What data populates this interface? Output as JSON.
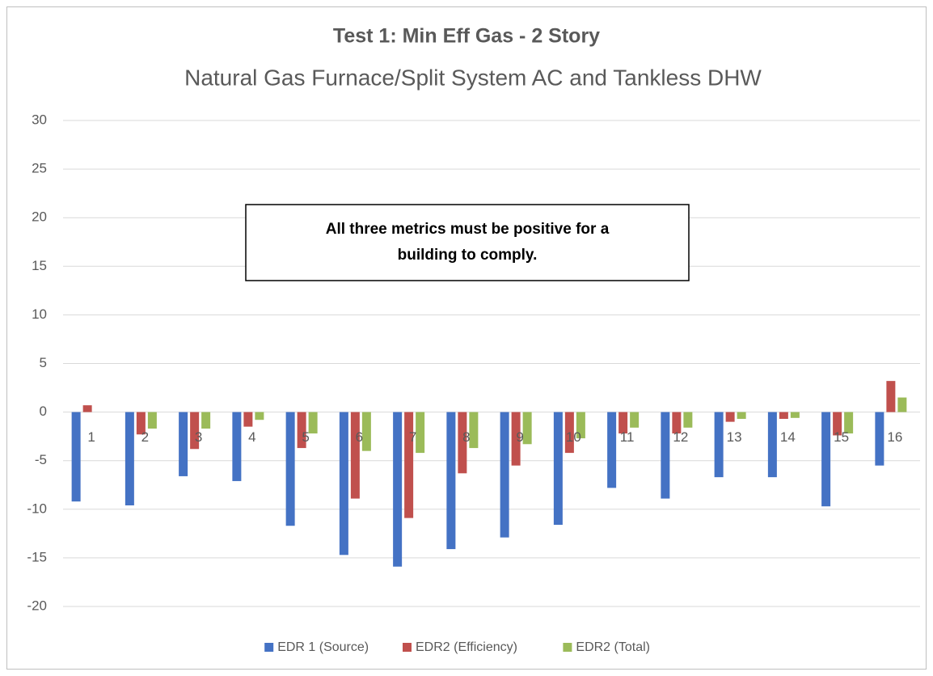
{
  "chart_data": {
    "type": "bar",
    "title": "Test 1: Min Eff Gas - 2 Story",
    "subtitle": "Natural Gas Furnace/Split System AC and Tankless DHW",
    "annotation": [
      "All three metrics must be positive for a",
      "building to comply."
    ],
    "categories": [
      "1",
      "2",
      "3",
      "4",
      "5",
      "6",
      "7",
      "8",
      "9",
      "10",
      "11",
      "12",
      "13",
      "14",
      "15",
      "16"
    ],
    "series": [
      {
        "name": "EDR 1 (Source)",
        "color": "#4472c4",
        "values": [
          -9.2,
          -9.6,
          -6.6,
          -7.1,
          -11.7,
          -14.7,
          -15.9,
          -14.1,
          -12.9,
          -11.6,
          -7.8,
          -8.9,
          -6.7,
          -6.7,
          -9.7,
          -5.5
        ]
      },
      {
        "name": "EDR2 (Efficiency)",
        "color": "#c0504d",
        "values": [
          0.7,
          -2.3,
          -3.8,
          -1.5,
          -3.7,
          -8.9,
          -10.9,
          -6.3,
          -5.5,
          -4.2,
          -2.2,
          -2.2,
          -1.0,
          -0.7,
          -2.4,
          3.2
        ]
      },
      {
        "name": "EDR2 (Total)",
        "color": "#9bbb59",
        "values": [
          0,
          -1.7,
          -1.7,
          -0.8,
          -2.2,
          -4.0,
          -4.2,
          -3.7,
          -3.3,
          -2.7,
          -1.6,
          -1.6,
          -0.7,
          -0.6,
          -2.2,
          1.5
        ]
      }
    ],
    "ylim": [
      -20,
      30
    ],
    "yticks": [
      -20,
      -15,
      -10,
      -5,
      0,
      5,
      10,
      15,
      20,
      25,
      30
    ],
    "grid": true,
    "legend": "bottom"
  }
}
